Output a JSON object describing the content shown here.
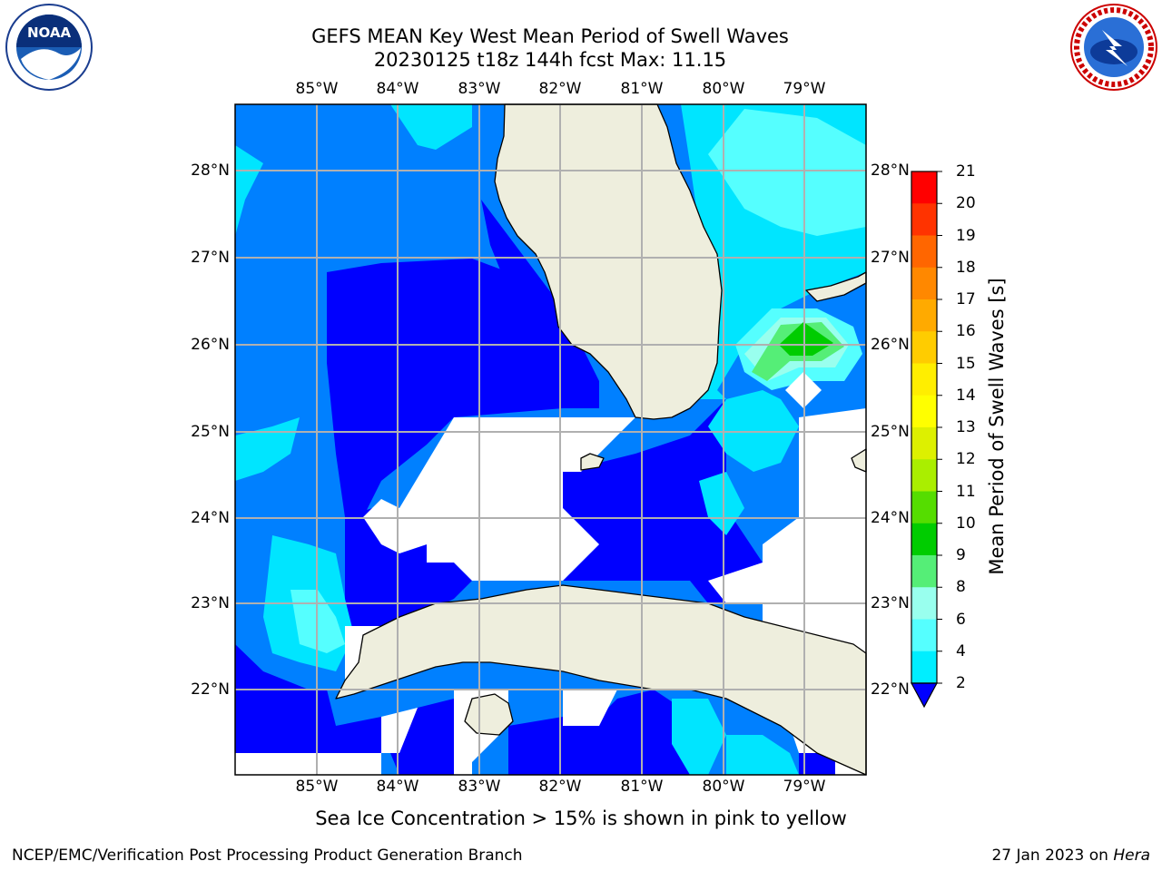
{
  "title": {
    "line1": "GEFS MEAN Key West Mean Period of Swell Waves",
    "line2": "20230125 t18z 144h fcst   Max: 11.15"
  },
  "logos": {
    "left": {
      "icon": "noaa-logo",
      "text": "NOAA"
    },
    "right": {
      "icon": "nws-logo"
    }
  },
  "axes": {
    "lon_ticks": [
      "85°W",
      "84°W",
      "83°W",
      "82°W",
      "81°W",
      "80°W",
      "79°W"
    ],
    "lat_ticks": [
      "28°N",
      "27°N",
      "26°N",
      "25°N",
      "24°N",
      "23°N",
      "22°N"
    ]
  },
  "colorbar": {
    "title": "Mean Period of Swell Waves [s]",
    "levels": [
      "21",
      "20",
      "19",
      "18",
      "17",
      "16",
      "15",
      "14",
      "13",
      "12",
      "11",
      "10",
      "9",
      "8",
      "6",
      "4",
      "2"
    ],
    "colors": [
      "#ff0000",
      "#ff3300",
      "#ff6600",
      "#ff8800",
      "#ffaa00",
      "#ffcc00",
      "#ffee00",
      "#ffff00",
      "#ddf000",
      "#aaee00",
      "#55dd00",
      "#00cc00",
      "#55ee77",
      "#99ffee",
      "#55ffff",
      "#00eeff",
      "#0080ff"
    ],
    "extend_color": "#0000ff"
  },
  "map_colors": {
    "land": "#eeeedd",
    "period_lt_2": "#0000ff",
    "period_2_4": "#0080ff",
    "period_4_6": "#00e5ff",
    "period_6_8": "#55ffff",
    "period_8_9": "#99ffee",
    "period_9_10": "#55ee77",
    "period_10_11": "#00cc00",
    "no_data": "#ffffff"
  },
  "footnote": "Sea Ice Concentration > 15% is shown in pink to yellow",
  "credit_left": "NCEP/EMC/Verification Post Processing Product Generation Branch",
  "credit_right_date": "27 Jan 2023 on ",
  "credit_right_host": "Hera"
}
